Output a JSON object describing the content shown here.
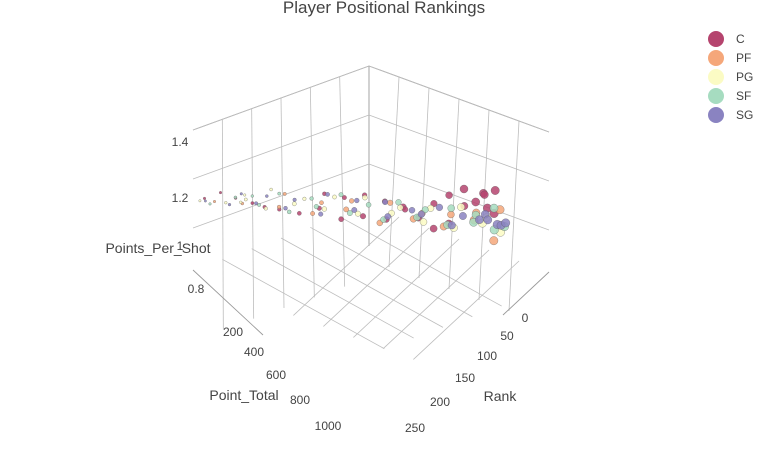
{
  "chart_data": {
    "type": "scatter3d",
    "title": "Player Positional Rankings",
    "axes": {
      "x": {
        "label": "Rank",
        "range": [
          0,
          260
        ],
        "ticks": [
          "0",
          "50",
          "100",
          "150",
          "200",
          "250"
        ]
      },
      "y": {
        "label": "Point_Total",
        "range": [
          0,
          1100
        ],
        "ticks": [
          "200",
          "400",
          "600",
          "800",
          "1000"
        ]
      },
      "z": {
        "label": "Points_Per_Shot",
        "range": [
          0.7,
          1.5
        ],
        "ticks": [
          "0.8",
          "1",
          "1.2",
          "1.4"
        ]
      }
    },
    "legend": {
      "placement": "top-right",
      "entries": [
        {
          "name": "C",
          "color": "#b5446e"
        },
        {
          "name": "PF",
          "color": "#f5a77a"
        },
        {
          "name": "PG",
          "color": "#fbfbc4"
        },
        {
          "name": "SF",
          "color": "#a6dcc0"
        },
        {
          "name": "SG",
          "color": "#8a83c1"
        }
      ]
    },
    "series": [
      {
        "name": "C",
        "points": [
          [
            5,
            1050,
            1.1
          ],
          [
            12,
            980,
            1.12
          ],
          [
            20,
            920,
            1.08
          ],
          [
            35,
            880,
            1.06
          ],
          [
            48,
            860,
            1.05
          ],
          [
            60,
            820,
            1.04
          ],
          [
            75,
            760,
            1.02
          ],
          [
            90,
            700,
            1.05
          ],
          [
            110,
            650,
            1.0
          ],
          [
            130,
            600,
            1.03
          ],
          [
            150,
            540,
            1.02
          ],
          [
            165,
            500,
            1.1
          ],
          [
            180,
            470,
            1.05
          ],
          [
            195,
            440,
            1.0
          ],
          [
            210,
            410,
            1.04
          ],
          [
            225,
            380,
            1.25
          ],
          [
            235,
            350,
            1.18
          ],
          [
            245,
            320,
            1.15
          ],
          [
            250,
            300,
            1.12
          ],
          [
            240,
            250,
            1.22
          ],
          [
            230,
            280,
            1.2
          ],
          [
            220,
            230,
            1.16
          ],
          [
            200,
            270,
            1.08
          ],
          [
            185,
            300,
            1.13
          ],
          [
            170,
            330,
            1.07
          ],
          [
            140,
            380,
            1.01
          ],
          [
            120,
            420,
            1.04
          ],
          [
            100,
            460,
            1.06
          ],
          [
            80,
            500,
            1.03
          ],
          [
            65,
            560,
            1.05
          ]
        ]
      },
      {
        "name": "PF",
        "points": [
          [
            8,
            1000,
            1.07
          ],
          [
            25,
            900,
            1.05
          ],
          [
            55,
            800,
            1.04
          ],
          [
            85,
            720,
            1.02
          ],
          [
            115,
            640,
            1.06
          ],
          [
            145,
            560,
            1.0
          ],
          [
            175,
            480,
            1.04
          ],
          [
            205,
            420,
            1.02
          ],
          [
            235,
            360,
            1.08
          ],
          [
            245,
            280,
            0.95
          ],
          [
            215,
            260,
            1.06
          ],
          [
            190,
            310,
            1.03
          ],
          [
            160,
            360,
            1.01
          ],
          [
            130,
            430,
            1.05
          ],
          [
            95,
            520,
            1.04
          ],
          [
            70,
            600,
            1.02
          ],
          [
            40,
            700,
            1.06
          ],
          [
            240,
            220,
            1.1
          ]
        ]
      },
      {
        "name": "PG",
        "points": [
          [
            3,
            1070,
            1.09
          ],
          [
            15,
            960,
            1.06
          ],
          [
            30,
            900,
            1.08
          ],
          [
            45,
            840,
            1.03
          ],
          [
            70,
            770,
            1.07
          ],
          [
            95,
            690,
            1.05
          ],
          [
            125,
            610,
            1.04
          ],
          [
            155,
            530,
            1.06
          ],
          [
            185,
            460,
            1.03
          ],
          [
            215,
            400,
            1.02
          ],
          [
            240,
            330,
            1.06
          ],
          [
            250,
            260,
            1.0
          ],
          [
            225,
            240,
            1.04
          ],
          [
            200,
            290,
            1.08
          ],
          [
            170,
            350,
            1.05
          ],
          [
            140,
            410,
            1.03
          ],
          [
            105,
            480,
            1.06
          ],
          [
            75,
            540,
            1.04
          ],
          [
            50,
            620,
            1.02
          ],
          [
            25,
            720,
            1.07
          ],
          [
            10,
            820,
            1.05
          ],
          [
            18,
            880,
            1.04
          ]
        ]
      },
      {
        "name": "SF",
        "points": [
          [
            6,
            1020,
            1.06
          ],
          [
            22,
            930,
            1.09
          ],
          [
            40,
            860,
            1.05
          ],
          [
            65,
            780,
            1.02
          ],
          [
            88,
            710,
            1.06
          ],
          [
            118,
            630,
            1.04
          ],
          [
            148,
            550,
            1.02
          ],
          [
            178,
            470,
            1.05
          ],
          [
            208,
            410,
            1.03
          ],
          [
            232,
            350,
            1.06
          ],
          [
            248,
            290,
            1.02
          ],
          [
            236,
            240,
            1.11
          ],
          [
            212,
            250,
            1.04
          ],
          [
            188,
            300,
            1.06
          ],
          [
            162,
            350,
            1.03
          ],
          [
            135,
            400,
            1.05
          ],
          [
            108,
            470,
            1.02
          ],
          [
            82,
            530,
            1.06
          ],
          [
            58,
            610,
            1.03
          ],
          [
            32,
            700,
            1.05
          ],
          [
            14,
            790,
            1.04
          ],
          [
            242,
            200,
            1.0
          ]
        ]
      },
      {
        "name": "SG",
        "points": [
          [
            4,
            1040,
            1.08
          ],
          [
            18,
            950,
            1.05
          ],
          [
            38,
            870,
            1.06
          ],
          [
            62,
            790,
            1.04
          ],
          [
            92,
            700,
            1.02
          ],
          [
            122,
            620,
            1.06
          ],
          [
            152,
            540,
            1.04
          ],
          [
            182,
            460,
            1.07
          ],
          [
            212,
            400,
            1.03
          ],
          [
            238,
            340,
            1.08
          ],
          [
            250,
            280,
            1.05
          ],
          [
            244,
            230,
            1.02
          ],
          [
            228,
            260,
            1.07
          ],
          [
            205,
            300,
            1.04
          ],
          [
            178,
            330,
            1.06
          ],
          [
            150,
            380,
            1.02
          ],
          [
            125,
            440,
            1.05
          ],
          [
            98,
            500,
            1.04
          ],
          [
            72,
            570,
            1.06
          ],
          [
            45,
            660,
            1.02
          ],
          [
            28,
            760,
            1.05
          ],
          [
            12,
            850,
            1.07
          ],
          [
            246,
            210,
            1.03
          ],
          [
            234,
            270,
            1.05
          ]
        ]
      }
    ]
  }
}
